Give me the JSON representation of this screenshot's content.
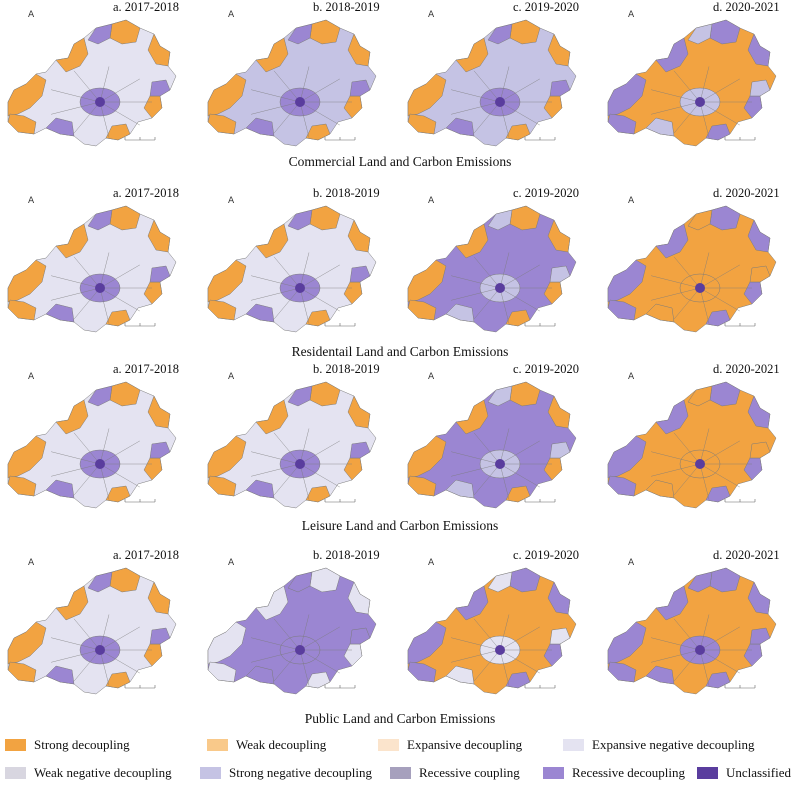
{
  "colors": {
    "strong_decoupling": "#f2a341",
    "weak_decoupling": "#f9c98a",
    "expansive_decoupling": "#fbe4cc",
    "expansive_negative_decoupling": "#e4e3f1",
    "weak_negative_decoupling": "#d8d6e0",
    "strong_negative_decoupling": "#c5c3e4",
    "recessive_coupling": "#a6a0bd",
    "recessive_decoupling": "#9b86d2",
    "unclassified": "#5a3d9e",
    "boundary": "#7b7b7b"
  },
  "north_symbol": "A",
  "panel_labels": [
    "a. 2017-2018",
    "b. 2018-2019",
    "c. 2019-2020",
    "d. 2020-2021"
  ],
  "rows": [
    {
      "title": "Commercial Land and Carbon Emissions",
      "panels": [
        {
          "label": "a. 2017-2018",
          "base": "expansive_negative_decoupling",
          "accent": "strong_decoupling",
          "center": "recessive_decoupling"
        },
        {
          "label": "b. 2018-2019",
          "base": "strong_negative_decoupling",
          "accent": "strong_decoupling",
          "center": "recessive_decoupling"
        },
        {
          "label": "c. 2019-2020",
          "base": "strong_negative_decoupling",
          "accent": "strong_decoupling",
          "center": "recessive_decoupling"
        },
        {
          "label": "d. 2020-2021",
          "base": "strong_decoupling",
          "accent": "recessive_decoupling",
          "center": "strong_negative_decoupling"
        }
      ]
    },
    {
      "title": "Residentail Land and Carbon Emissions",
      "panels": [
        {
          "label": "a. 2017-2018",
          "base": "expansive_negative_decoupling",
          "accent": "strong_decoupling",
          "center": "recessive_decoupling"
        },
        {
          "label": "b. 2018-2019",
          "base": "expansive_negative_decoupling",
          "accent": "strong_decoupling",
          "center": "recessive_decoupling"
        },
        {
          "label": "c. 2019-2020",
          "base": "recessive_decoupling",
          "accent": "strong_decoupling",
          "center": "strong_negative_decoupling"
        },
        {
          "label": "d. 2020-2021",
          "base": "strong_decoupling",
          "accent": "recessive_decoupling",
          "center": "strong_decoupling"
        }
      ]
    },
    {
      "title": "Leisure Land and Carbon Emissions",
      "panels": [
        {
          "label": "a. 2017-2018",
          "base": "expansive_negative_decoupling",
          "accent": "strong_decoupling",
          "center": "recessive_decoupling"
        },
        {
          "label": "b. 2018-2019",
          "base": "expansive_negative_decoupling",
          "accent": "strong_decoupling",
          "center": "recessive_decoupling"
        },
        {
          "label": "c. 2019-2020",
          "base": "recessive_decoupling",
          "accent": "strong_decoupling",
          "center": "strong_negative_decoupling"
        },
        {
          "label": "d. 2020-2021",
          "base": "strong_decoupling",
          "accent": "recessive_decoupling",
          "center": "strong_decoupling"
        }
      ]
    },
    {
      "title": "Public Land and Carbon Emissions",
      "panels": [
        {
          "label": "a. 2017-2018",
          "base": "expansive_negative_decoupling",
          "accent": "strong_decoupling",
          "center": "recessive_decoupling"
        },
        {
          "label": "b. 2018-2019",
          "base": "recessive_decoupling",
          "accent": "expansive_negative_decoupling",
          "center": "recessive_decoupling"
        },
        {
          "label": "c. 2019-2020",
          "base": "strong_decoupling",
          "accent": "recessive_decoupling",
          "center": "expansive_negative_decoupling"
        },
        {
          "label": "d. 2020-2021",
          "base": "strong_decoupling",
          "accent": "recessive_decoupling",
          "center": "recessive_decoupling"
        }
      ]
    }
  ],
  "legend": [
    {
      "label": "Strong decoupling",
      "color_key": "strong_decoupling"
    },
    {
      "label": "Weak decoupling",
      "color_key": "weak_decoupling"
    },
    {
      "label": "Expansive decoupling",
      "color_key": "expansive_decoupling"
    },
    {
      "label": "Expansive negative decoupling",
      "color_key": "expansive_negative_decoupling"
    },
    {
      "label": "Weak negative decoupling",
      "color_key": "weak_negative_decoupling"
    },
    {
      "label": "Strong negative decoupling",
      "color_key": "strong_negative_decoupling"
    },
    {
      "label": "Recessive coupling",
      "color_key": "recessive_coupling"
    },
    {
      "label": "Recessive decoupling",
      "color_key": "recessive_decoupling"
    },
    {
      "label": "Unclassified",
      "color_key": "unclassified"
    }
  ]
}
